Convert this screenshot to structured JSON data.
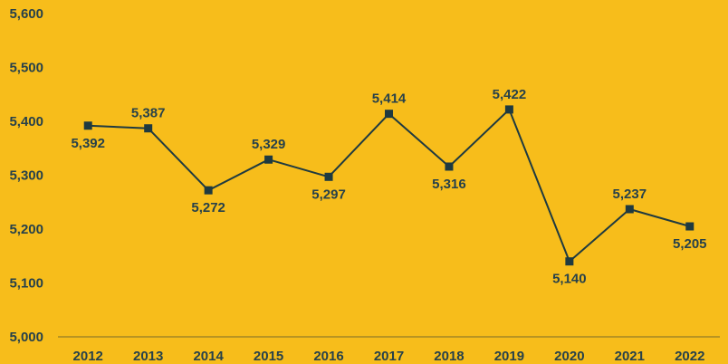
{
  "chart_data": {
    "type": "line",
    "categories": [
      "2012",
      "2013",
      "2014",
      "2015",
      "2016",
      "2017",
      "2018",
      "2019",
      "2020",
      "2021",
      "2022"
    ],
    "series": [
      {
        "values": [
          5392,
          5387,
          5272,
          5329,
          5297,
          5414,
          5316,
          5422,
          5140,
          5237,
          5205
        ]
      }
    ],
    "data_labels": [
      "5,392",
      "5,387",
      "5,272",
      "5,329",
      "5,297",
      "5,414",
      "5,316",
      "5,422",
      "5,140",
      "5,237",
      "5,205"
    ],
    "data_label_position": [
      "below",
      "above",
      "below",
      "above",
      "below",
      "above",
      "below",
      "above",
      "below",
      "above",
      "below"
    ],
    "y_ticks": [
      "5,000",
      "5,100",
      "5,200",
      "5,300",
      "5,400",
      "5,500",
      "5,600"
    ],
    "ylim": [
      5000,
      5600
    ],
    "xlabel": "",
    "ylabel": "",
    "grid": false,
    "legend": "none",
    "marker": "square",
    "colors": {
      "background": "#F7BD1B",
      "line": "#1F3A40",
      "marker": "#1F3A40",
      "text": "#27414A",
      "axis": "#7A6A2A"
    }
  }
}
